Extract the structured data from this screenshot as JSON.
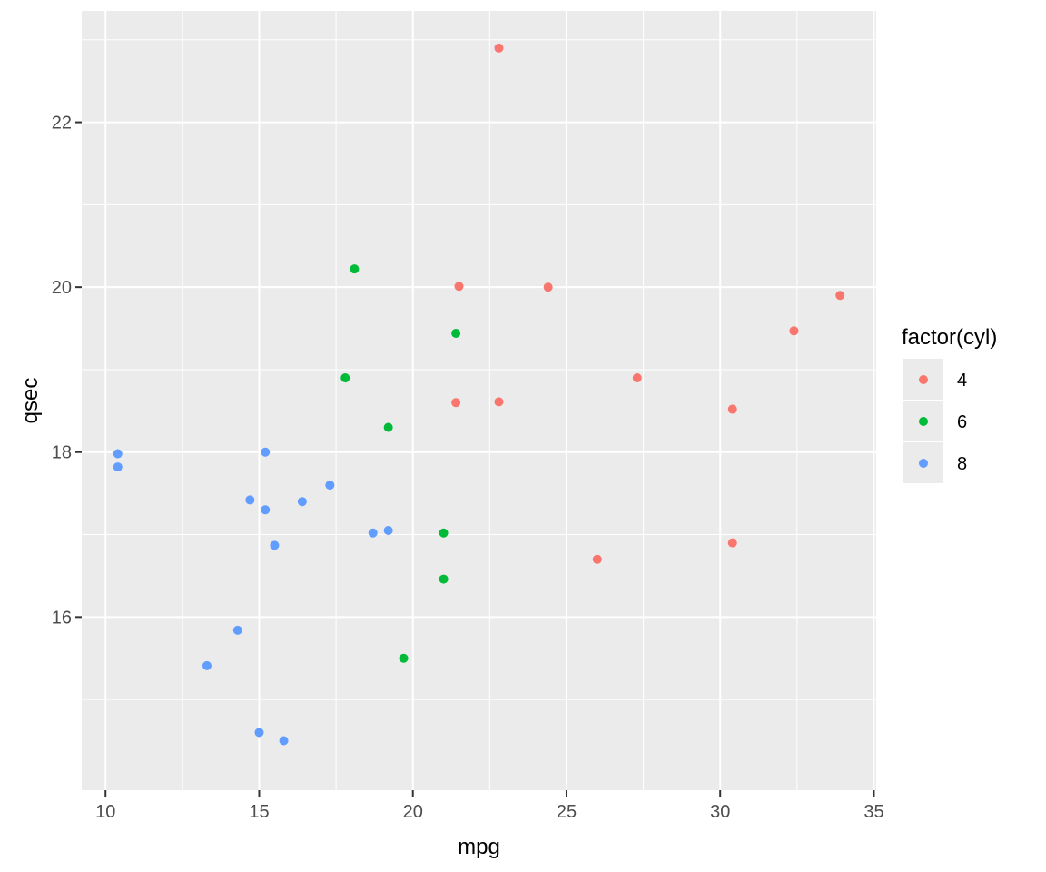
{
  "chart_data": {
    "type": "scatter",
    "xlabel": "mpg",
    "ylabel": "qsec",
    "xlim": [
      9.225,
      35.075
    ],
    "ylim": [
      13.9,
      23.35
    ],
    "x_ticks": [
      10,
      15,
      20,
      25,
      30,
      35
    ],
    "x_tick_labels": [
      "10",
      "15",
      "20",
      "25",
      "30",
      "35"
    ],
    "y_ticks": [
      16,
      18,
      20,
      22
    ],
    "y_tick_labels": [
      "16",
      "18",
      "20",
      "22"
    ],
    "grid": true,
    "legend": {
      "title": "factor(cyl)",
      "placement": "right"
    },
    "series": [
      {
        "name": "4",
        "color": "#F8766D",
        "points": [
          [
            22.8,
            22.9
          ],
          [
            21.5,
            20.01
          ],
          [
            24.4,
            20.0
          ],
          [
            33.9,
            19.9
          ],
          [
            32.4,
            19.47
          ],
          [
            27.3,
            18.9
          ],
          [
            22.8,
            18.61
          ],
          [
            21.4,
            18.6
          ],
          [
            30.4,
            18.52
          ],
          [
            30.4,
            16.9
          ],
          [
            26.0,
            16.7
          ]
        ]
      },
      {
        "name": "6",
        "color": "#00BA38",
        "points": [
          [
            18.1,
            20.22
          ],
          [
            21.4,
            19.44
          ],
          [
            17.8,
            18.9
          ],
          [
            19.2,
            18.3
          ],
          [
            21.0,
            17.02
          ],
          [
            21.0,
            16.46
          ],
          [
            19.7,
            15.5
          ]
        ]
      },
      {
        "name": "8",
        "color": "#619CFF",
        "points": [
          [
            10.4,
            17.98
          ],
          [
            10.4,
            17.82
          ],
          [
            15.2,
            18.0
          ],
          [
            14.7,
            17.42
          ],
          [
            15.2,
            17.3
          ],
          [
            16.4,
            17.4
          ],
          [
            17.3,
            17.6
          ],
          [
            19.2,
            17.05
          ],
          [
            18.7,
            17.02
          ],
          [
            15.5,
            16.87
          ],
          [
            14.3,
            15.84
          ],
          [
            13.3,
            15.41
          ],
          [
            15.0,
            14.6
          ],
          [
            15.8,
            14.5
          ]
        ]
      }
    ]
  }
}
